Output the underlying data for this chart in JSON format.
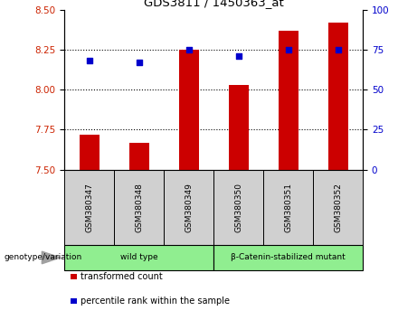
{
  "title": "GDS3811 / 1450363_at",
  "samples": [
    "GSM380347",
    "GSM380348",
    "GSM380349",
    "GSM380350",
    "GSM380351",
    "GSM380352"
  ],
  "bar_values": [
    7.72,
    7.67,
    8.25,
    8.03,
    8.37,
    8.42
  ],
  "percentile_values": [
    68,
    67,
    75,
    71,
    75,
    75
  ],
  "ylim_left": [
    7.5,
    8.5
  ],
  "ylim_right": [
    0,
    100
  ],
  "yticks_left": [
    7.5,
    7.75,
    8.0,
    8.25,
    8.5
  ],
  "yticks_right": [
    0,
    25,
    50,
    75,
    100
  ],
  "bar_color": "#CC0000",
  "dot_color": "#0000CC",
  "hline_values": [
    7.75,
    8.0,
    8.25
  ],
  "legend_items": [
    "transformed count",
    "percentile rank within the sample"
  ],
  "group_label_prefix": "genotype/variation",
  "axis_label_color_left": "#CC2200",
  "axis_label_color_right": "#0000CC",
  "group_defs": [
    {
      "label": "wild type",
      "start": 0,
      "end": 2,
      "color": "#90EE90"
    },
    {
      "label": "β-Catenin-stabilized mutant",
      "start": 3,
      "end": 5,
      "color": "#90EE90"
    }
  ],
  "sample_box_color": "#D0D0D0",
  "bar_width": 0.4
}
